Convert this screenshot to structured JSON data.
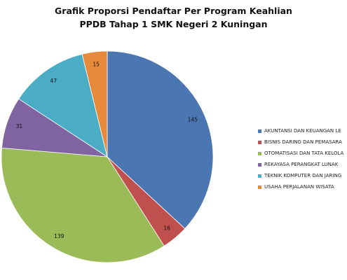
{
  "chart_data": {
    "type": "pie",
    "title_lines": [
      "Grafik Proporsi Pendaftar Per Program Keahlian",
      "PPDB Tahap 1 SMK Negeri 2 Kuningan"
    ],
    "slices": [
      {
        "label": "AKUNTANSI DAN KEUANGAN LE",
        "value": 145,
        "color": "#4a76b1"
      },
      {
        "label": "BISNIS DARING DAN PEMASARA",
        "value": 16,
        "color": "#c0504d"
      },
      {
        "label": "OTOMATISASI DAN TATA KELOLA",
        "value": 139,
        "color": "#9bbb59"
      },
      {
        "label": "REKAYASA PERANGKAT LUNAK",
        "value": 31,
        "color": "#8064a2"
      },
      {
        "label": "TEKNIK KOMPUTER DAN JARING",
        "value": 47,
        "color": "#4bacc6"
      },
      {
        "label": "USAHA PERJALANAN WISATA",
        "value": 15,
        "color": "#e6893a"
      }
    ],
    "legend_position": "right",
    "data_labels": true
  }
}
